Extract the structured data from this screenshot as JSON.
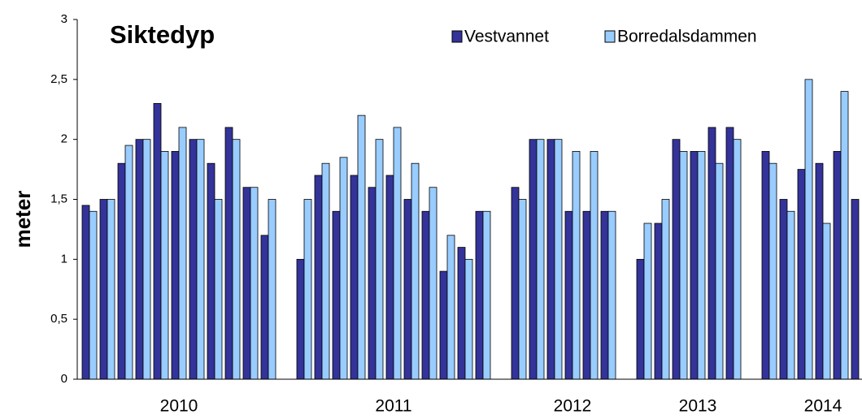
{
  "chart_data": {
    "type": "bar",
    "title": "Siktedyp",
    "y_label": "meter",
    "categories": [
      null,
      null,
      null,
      null,
      null,
      "2010",
      null,
      null,
      null,
      null,
      null,
      null,
      null,
      null,
      null,
      null,
      null,
      "2011",
      null,
      null,
      null,
      null,
      null,
      null,
      null,
      null,
      null,
      "2012",
      null,
      null,
      null,
      null,
      null,
      null,
      "2013",
      null,
      null,
      null,
      null,
      null,
      null,
      "2014",
      null,
      null
    ],
    "series": [
      {
        "name": "Vestvannet",
        "color": "#333399",
        "values": [
          1.45,
          1.5,
          1.8,
          2.0,
          2.3,
          1.9,
          2.0,
          1.8,
          2.1,
          1.6,
          1.2,
          null,
          1.0,
          1.7,
          1.4,
          1.7,
          1.6,
          1.7,
          1.5,
          1.4,
          0.9,
          1.1,
          1.4,
          null,
          1.6,
          2.0,
          2.0,
          1.4,
          1.4,
          1.4,
          null,
          1.0,
          1.3,
          2.0,
          1.9,
          2.1,
          2.1,
          null,
          1.9,
          1.5,
          1.75,
          1.8,
          1.9,
          1.5
        ]
      },
      {
        "name": "Borredalsdammen",
        "color": "#99ccff",
        "values": [
          1.4,
          1.5,
          1.95,
          2.0,
          1.9,
          2.1,
          2.0,
          1.5,
          2.0,
          1.6,
          1.5,
          null,
          1.5,
          1.8,
          1.85,
          2.2,
          2.0,
          2.1,
          1.8,
          1.6,
          1.2,
          1.0,
          1.4,
          null,
          1.5,
          2.0,
          2.0,
          1.9,
          1.9,
          1.4,
          null,
          1.3,
          1.5,
          1.9,
          1.9,
          1.8,
          2.0,
          null,
          1.8,
          1.4,
          2.5,
          1.3,
          2.4,
          null
        ]
      }
    ],
    "ylim": [
      0,
      3
    ],
    "yticks": [
      0,
      {
        "value": 0.5,
        "label": "0,5"
      },
      1,
      {
        "value": 1.5,
        "label": "1,5"
      },
      2,
      {
        "value": 2.5,
        "label": "2,5"
      },
      3
    ],
    "grid": false,
    "legend": "top-right"
  }
}
